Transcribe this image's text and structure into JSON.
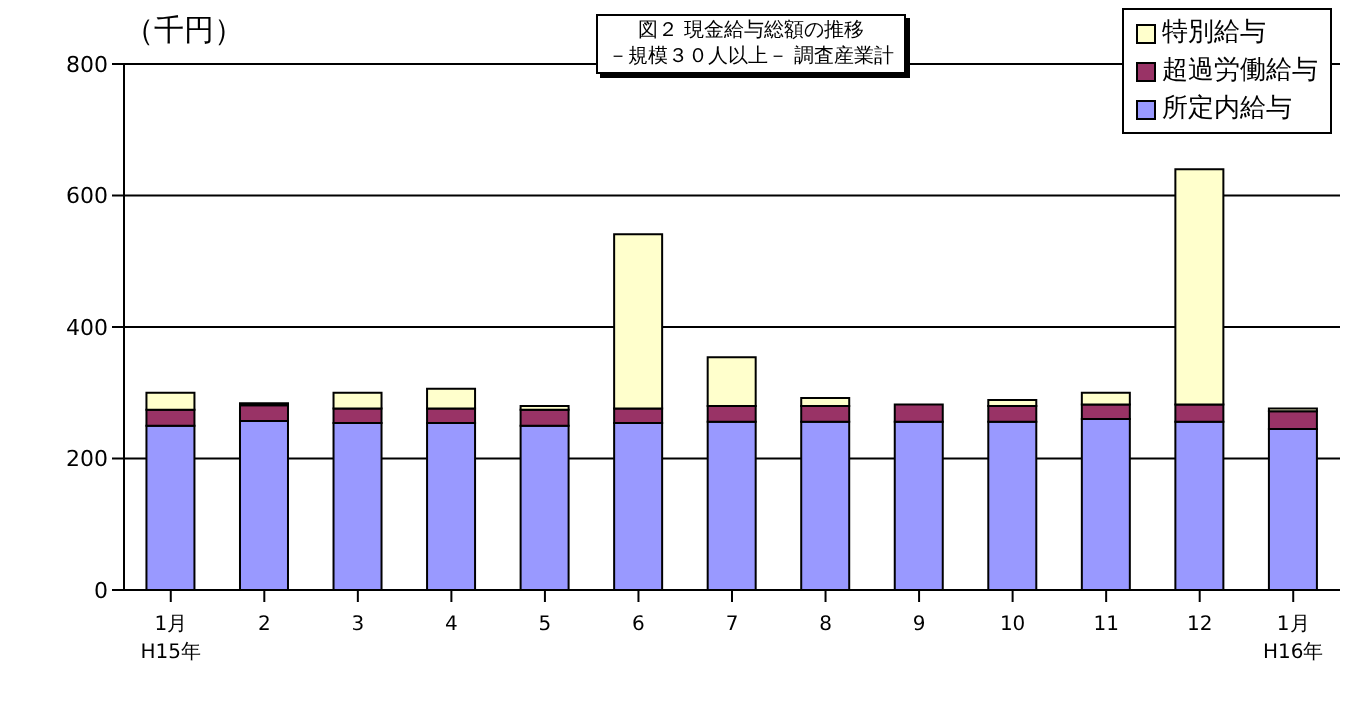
{
  "chart_data": {
    "type": "bar",
    "title": "図２ 現金給与総額の推移",
    "subtitle": "－規模３０人以上－ 調査産業計",
    "ylabel": "（千円）",
    "categories": [
      "1月\nH15年",
      "2",
      "3",
      "4",
      "5",
      "6",
      "7",
      "8",
      "9",
      "10",
      "11",
      "12",
      "1月\nH16年"
    ],
    "stacked": true,
    "legend": "top right",
    "grid": "y",
    "ylim": [
      0,
      800
    ],
    "yticks": [
      0,
      200,
      400,
      600,
      800
    ],
    "series": [
      {
        "name": "所定内給与",
        "color": "#9999ff",
        "values": [
          250,
          257,
          254,
          254,
          250,
          254,
          256,
          256,
          256,
          256,
          260,
          256,
          245
        ]
      },
      {
        "name": "超過労働給与",
        "color": "#993366",
        "values": [
          24,
          24,
          22,
          22,
          24,
          22,
          24,
          24,
          26,
          24,
          22,
          26,
          27
        ]
      },
      {
        "name": "特別給与",
        "color": "#ffffcc",
        "values": [
          26,
          3,
          24,
          30,
          6,
          265,
          74,
          12,
          null,
          9,
          18,
          358,
          4
        ]
      }
    ]
  }
}
